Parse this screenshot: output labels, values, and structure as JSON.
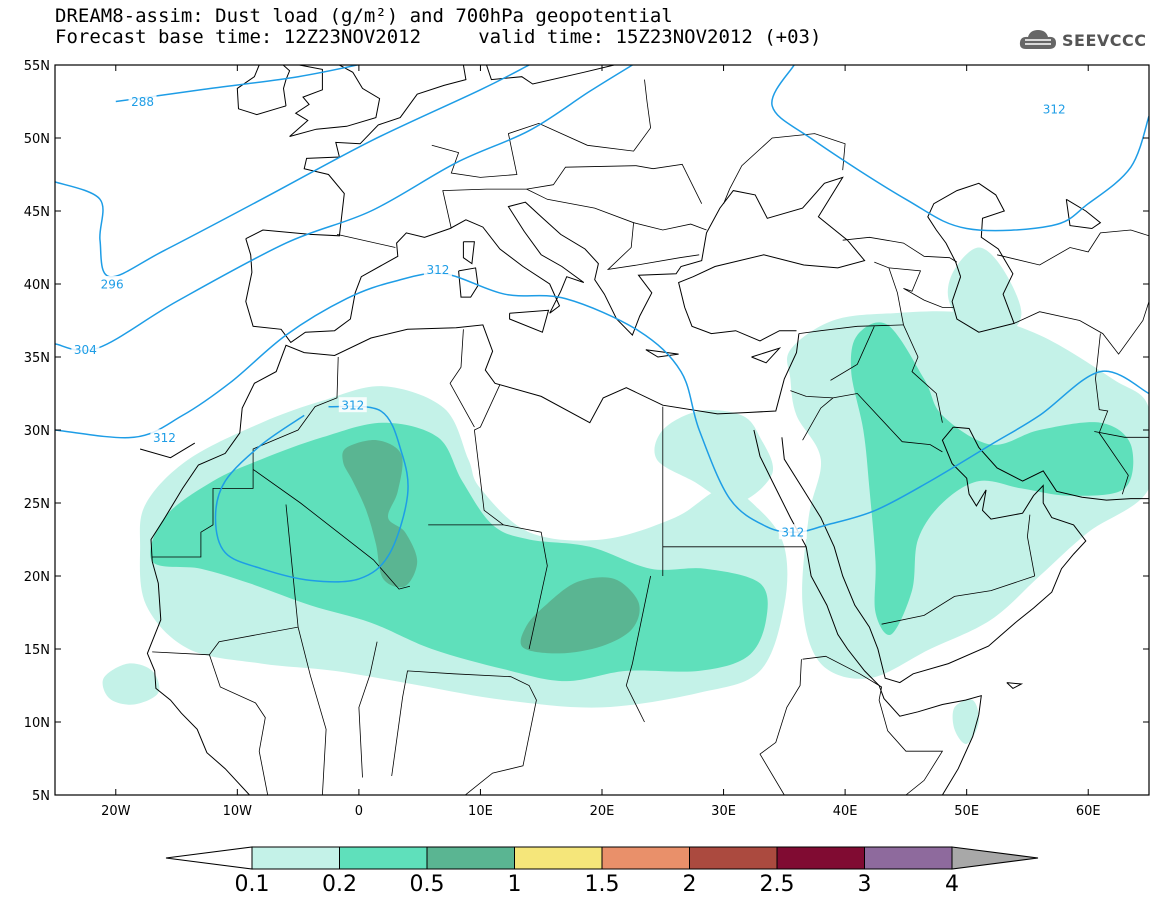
{
  "header": {
    "title_line1": "DREAM8-assim: Dust load (g/m²) and 700hPa geopotential",
    "title_line2": "Forecast base time: 12Z23NOV2012     valid time: 15Z23NOV2012 (+03)",
    "logo_text": "SEEVCCC"
  },
  "map": {
    "lon_range": [
      -25,
      65
    ],
    "lat_range": [
      5,
      55
    ],
    "lon_ticks": [
      {
        "v": -20,
        "label": "20W"
      },
      {
        "v": -10,
        "label": "10W"
      },
      {
        "v": 0,
        "label": "0"
      },
      {
        "v": 10,
        "label": "10E"
      },
      {
        "v": 20,
        "label": "20E"
      },
      {
        "v": 30,
        "label": "30E"
      },
      {
        "v": 40,
        "label": "40E"
      },
      {
        "v": 50,
        "label": "50E"
      },
      {
        "v": 60,
        "label": "60E"
      }
    ],
    "lat_ticks": [
      {
        "v": 55,
        "label": "55N"
      },
      {
        "v": 50,
        "label": "50N"
      },
      {
        "v": 45,
        "label": "45N"
      },
      {
        "v": 40,
        "label": "40N"
      },
      {
        "v": 35,
        "label": "35N"
      },
      {
        "v": 30,
        "label": "30N"
      },
      {
        "v": 25,
        "label": "25N"
      },
      {
        "v": 20,
        "label": "20N"
      },
      {
        "v": 15,
        "label": "15N"
      },
      {
        "v": 10,
        "label": "10N"
      },
      {
        "v": 5,
        "label": "5N"
      }
    ],
    "dust_colors": {
      "0.1-0.2": "#c4f2e8",
      "0.2-0.5": "#5fe0bb",
      "0.5-1": "#5ab592"
    },
    "contour_color": "#1e9de6",
    "contour_labels": [
      {
        "label": "288",
        "lon": -17.8,
        "lat": 52.5
      },
      {
        "label": "296",
        "lon": -20.3,
        "lat": 40.0
      },
      {
        "label": "304",
        "lon": -22.5,
        "lat": 35.5
      },
      {
        "label": "312",
        "lon": -16.0,
        "lat": 29.5
      },
      {
        "label": "312",
        "lon": -0.5,
        "lat": 31.7
      },
      {
        "label": "312",
        "lon": 6.5,
        "lat": 41.0
      },
      {
        "label": "312",
        "lon": 35.7,
        "lat": 23.0
      },
      {
        "label": "312",
        "lon": 57.2,
        "lat": 52.0
      }
    ]
  },
  "colorbar": {
    "colors": [
      "#c4f2e8",
      "#5fe0bb",
      "#5ab592",
      "#f5e67a",
      "#e9906a",
      "#ab4a3f",
      "#800b32",
      "#8e6a9d"
    ],
    "labels": [
      "0.1",
      "0.2",
      "0.5",
      "1",
      "1.5",
      "2",
      "2.5",
      "3",
      "4"
    ],
    "under_color": "#ffffff",
    "over_color": "#a8a8a8"
  }
}
